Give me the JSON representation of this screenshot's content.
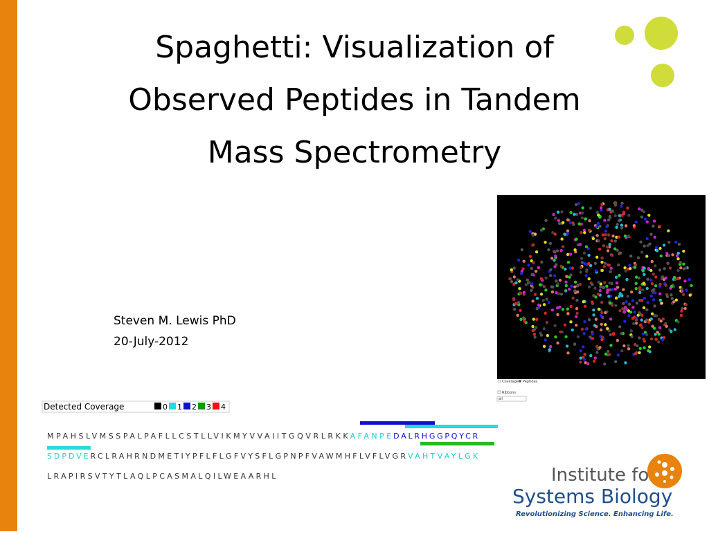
{
  "title_lines": [
    "Spaghetti: Visualization of",
    "Observed Peptides in Tandem",
    "Mass Spectrometry"
  ],
  "author": "Steven M. Lewis PhD",
  "date": "20-July-2012",
  "viewer": {
    "options": [
      "Coverage",
      "Peptides"
    ],
    "checkbox": "Ribbons",
    "select": "all"
  },
  "coverage_legend": {
    "label": "Detected Coverage",
    "levels": [
      {
        "label": "0",
        "color": "#000000"
      },
      {
        "label": "1",
        "color": "#22dddd"
      },
      {
        "label": "2",
        "color": "#1111cc"
      },
      {
        "label": "3",
        "color": "#119911"
      },
      {
        "label": "4",
        "color": "#ee1111"
      }
    ]
  },
  "sequence": [
    [
      {
        "text": "MPAHSLVMSSPALPAFLLCSTLLVIKMYVVAIITGQVRLRKK",
        "color": "#333333"
      },
      {
        "text": "AFANPE",
        "color": "#22cccc"
      },
      {
        "text": "DALRHGGPQYCR",
        "color": "#1111cc"
      }
    ],
    [
      {
        "text": "SDPDVE",
        "color": "#22cccc"
      },
      {
        "text": "RCLRAHRNDMETIYPFLFLGFVYSFLGPNPFVAWMHFLVFLVGR",
        "color": "#333333"
      },
      {
        "text": "VAHTVAYLGK",
        "color": "#22cccc"
      }
    ],
    [
      {
        "text": "LRAPIRSVTYTLAQLPCASMALQILWEAARHL",
        "color": "#333333"
      }
    ]
  ],
  "logo": {
    "line1": "Institute for",
    "line2": "Systems Biology",
    "tagline": "Revolutionizing Science. Enhancing Life."
  }
}
